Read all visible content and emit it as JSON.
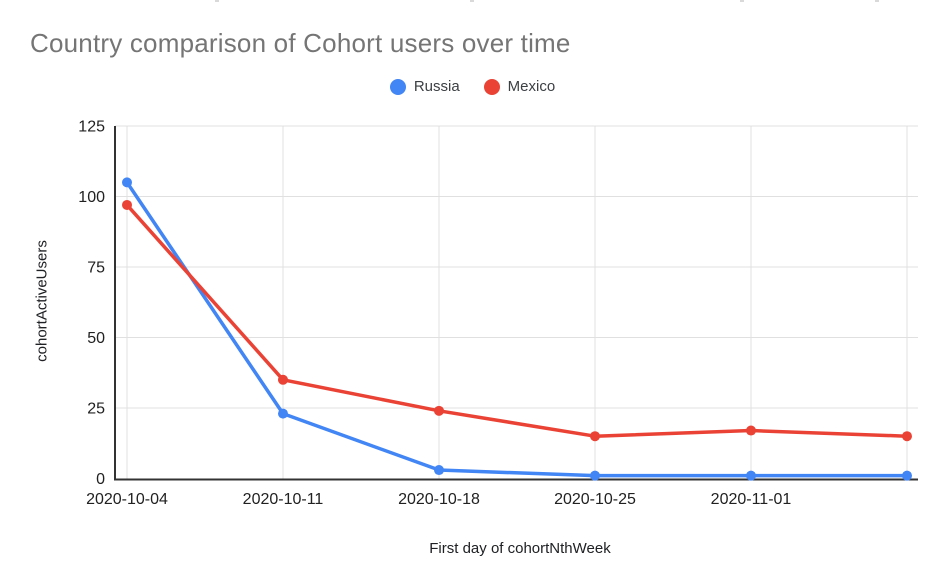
{
  "chart_data": {
    "type": "line",
    "title": "Country comparison of Cohort users over time",
    "xlabel": "First day of cohortNthWeek",
    "ylabel": "cohortActiveUsers",
    "categories": [
      "2020-10-04",
      "2020-10-11",
      "2020-10-18",
      "2020-10-25",
      "2020-11-01",
      ""
    ],
    "series": [
      {
        "name": "Russia",
        "color": "#4285F4",
        "values": [
          105,
          23,
          3,
          1,
          1,
          1
        ]
      },
      {
        "name": "Mexico",
        "color": "#EA4335",
        "values": [
          97,
          35,
          24,
          15,
          17,
          15
        ]
      }
    ],
    "y_ticks": [
      0,
      25,
      50,
      75,
      100,
      125
    ],
    "ylim": [
      0,
      125
    ],
    "grid": true,
    "legend_position": "top-center",
    "marker": "circle"
  },
  "colors": {
    "title_text": "#757575",
    "tick_text": "#212121",
    "axis_title_text": "#202124",
    "legend_text": "#3c4043",
    "grid": "#e0e0e0",
    "axis": "#333333",
    "background": "#ffffff"
  }
}
